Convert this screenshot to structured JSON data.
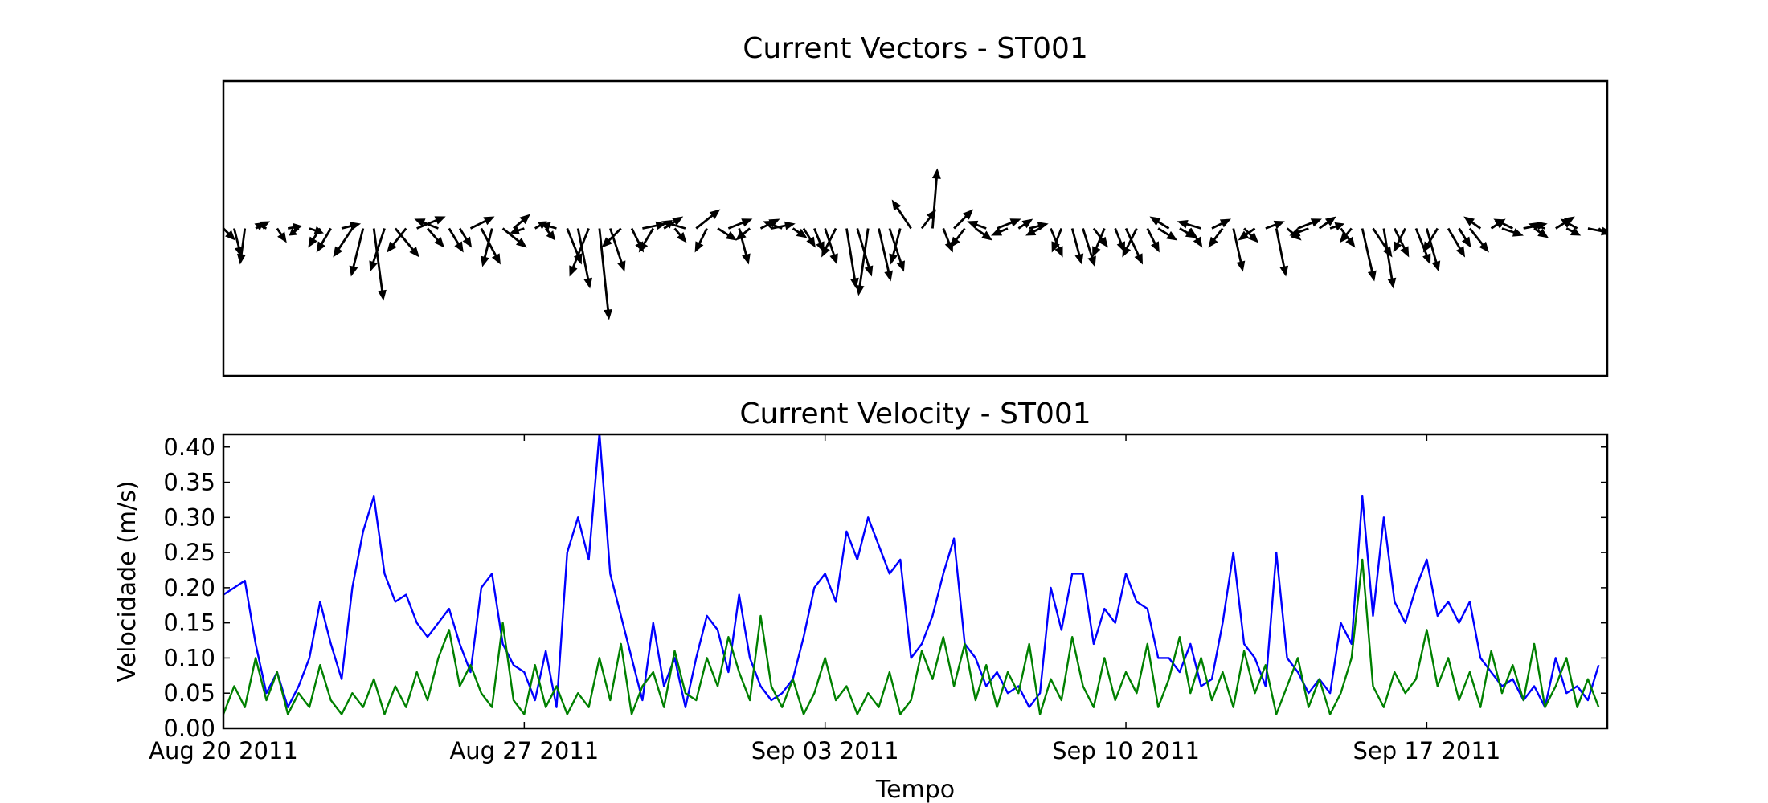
{
  "chart_data": [
    {
      "type": "quiver",
      "title": "Current Vectors - ST001",
      "color": "#000000",
      "xlim": [
        0,
        32.2
      ],
      "x": [
        0,
        0.25,
        0.5,
        0.75,
        1,
        1.25,
        1.5,
        1.75,
        2,
        2.25,
        2.5,
        2.75,
        3,
        3.25,
        3.5,
        3.75,
        4,
        4.25,
        4.5,
        4.75,
        5,
        5.25,
        5.5,
        5.75,
        6,
        6.25,
        6.5,
        6.75,
        7,
        7.25,
        7.5,
        7.75,
        8,
        8.25,
        8.5,
        8.75,
        9,
        9.25,
        9.5,
        9.75,
        10,
        10.25,
        10.5,
        10.75,
        11,
        11.25,
        11.5,
        11.75,
        12,
        12.25,
        12.5,
        12.75,
        13,
        13.25,
        13.5,
        13.75,
        14,
        14.25,
        14.5,
        14.75,
        15,
        15.25,
        15.5,
        15.75,
        16,
        16.25,
        16.5,
        16.75,
        17,
        17.25,
        17.5,
        17.75,
        18,
        18.25,
        18.5,
        18.75,
        19,
        19.25,
        19.5,
        19.75,
        20,
        20.25,
        20.5,
        20.75,
        21,
        21.25,
        21.5,
        21.75,
        22,
        22.25,
        22.5,
        22.75,
        23,
        23.25,
        23.5,
        23.75,
        24,
        24.25,
        24.5,
        24.75,
        25,
        25.25,
        25.5,
        25.75,
        26,
        26.25,
        26.5,
        26.75,
        27,
        27.25,
        27.5,
        27.75,
        28,
        28.25,
        28.5,
        28.75,
        29,
        29.25,
        29.5,
        29.75,
        30,
        30.25,
        30.5,
        30.75,
        31,
        31.25,
        31.5,
        31.75,
        32
      ],
      "u": [
        0.05,
        0.03,
        -0.02,
        0.06,
        -0.05,
        0.04,
        0.06,
        -0.04,
        0.06,
        -0.05,
        -0.06,
        0.08,
        -0.08,
        -0.05,
        0.04,
        -0.06,
        0.1,
        -0.08,
        0.12,
        0.07,
        -0.1,
        0.06,
        0.05,
        0.1,
        0.08,
        -0.04,
        0.1,
        0.07,
        -0.06,
        0.05,
        0.04,
        -0.07,
        0.06,
        0.05,
        -0.08,
        0.04,
        0.06,
        -0.08,
        0.05,
        0.1,
        -0.06,
        0.08,
        0.05,
        -0.1,
        0.1,
        -0.05,
        0.08,
        0.1,
        0.04,
        -0.06,
        0.08,
        0.1,
        -0.08,
        0.06,
        0.05,
        0.04,
        0.05,
        -0.06,
        0.04,
        0.06,
        -0.04,
        0.05,
        0.06,
        -0.04,
        -0.08,
        0.06,
        0.02,
        0.04,
        0.08,
        -0.06,
        0.07,
        -0.08,
        0.1,
        -0.07,
        0.06,
        0.08,
        -0.06,
        0.05,
        -0.04,
        0.04,
        0.05,
        0.06,
        -0.05,
        0.04,
        0.07,
        -0.06,
        0.05,
        0.08,
        -0.08,
        0.07,
        0.05,
        -0.1,
        0.08,
        -0.06,
        0.04,
        0.06,
        -0.07,
        0.08,
        0.04,
        0.06,
        0.1,
        -0.08,
        0.07,
        0.06,
        0.06,
        -0.05,
        0.05,
        0.08,
        0.04,
        0.06,
        -0.05,
        0.06,
        0.05,
        -0.06,
        0.07,
        0.05,
        0.08,
        -0.07,
        0.06,
        0.09,
        -0.08,
        0.1,
        0.06,
        -0.07,
        0.08,
        0.06,
        -0.07,
        0.1,
        0.08
      ],
      "v": [
        -0.05,
        -0.12,
        -0.15,
        0.03,
        0.02,
        -0.06,
        0.01,
        -0.03,
        -0.02,
        -0.08,
        -0.1,
        0.02,
        -0.12,
        -0.2,
        -0.3,
        -0.18,
        -0.12,
        -0.1,
        0.05,
        -0.08,
        0.04,
        -0.1,
        -0.08,
        0.05,
        -0.15,
        -0.16,
        -0.08,
        0.06,
        -0.02,
        0.03,
        -0.05,
        0.02,
        -0.15,
        -0.25,
        -0.2,
        -0.38,
        -0.18,
        -0.08,
        -0.1,
        0.02,
        -0.1,
        0.05,
        -0.06,
        0.03,
        0.08,
        -0.1,
        -0.05,
        0.04,
        -0.15,
        -0.05,
        0.04,
        0.02,
        0.03,
        -0.04,
        -0.08,
        -0.1,
        -0.15,
        -0.12,
        -0.25,
        -0.2,
        -0.28,
        -0.22,
        -0.18,
        -0.15,
        0.12,
        0.08,
        0.25,
        -0.1,
        0.08,
        -0.08,
        -0.05,
        0.03,
        0.04,
        -0.03,
        0.04,
        0.02,
        -0.03,
        -0.12,
        -0.1,
        -0.15,
        -0.16,
        -0.08,
        -0.12,
        -0.1,
        -0.15,
        -0.12,
        -0.1,
        -0.05,
        0.05,
        -0.04,
        -0.08,
        0.03,
        0.04,
        -0.08,
        -0.18,
        -0.06,
        -0.05,
        0.03,
        -0.2,
        -0.05,
        0.04,
        -0.03,
        0.05,
        0.02,
        -0.08,
        -0.06,
        -0.22,
        -0.12,
        -0.25,
        -0.12,
        -0.1,
        -0.15,
        -0.18,
        -0.1,
        -0.12,
        -0.08,
        -0.1,
        0.05,
        0.04,
        -0.03,
        0.04,
        0.02,
        -0.04,
        0.02,
        0.05,
        -0.03,
        0.04,
        -0.02,
        -0.06
      ]
    },
    {
      "type": "line",
      "title": "Current Velocity - ST001",
      "xlabel": "Tempo",
      "ylabel": "Velocidade (m/s)",
      "xlim": [
        0,
        32.2
      ],
      "ylim": [
        0,
        0.418
      ],
      "xticks": [
        {
          "value": 0,
          "label": "Aug 20 2011"
        },
        {
          "value": 7,
          "label": "Aug 27 2011"
        },
        {
          "value": 14,
          "label": "Sep 03 2011"
        },
        {
          "value": 21,
          "label": "Sep 10 2011"
        },
        {
          "value": 28,
          "label": "Sep 17 2011"
        }
      ],
      "yticks": [
        {
          "value": 0,
          "label": "0.00"
        },
        {
          "value": 0.05,
          "label": "0.05"
        },
        {
          "value": 0.1,
          "label": "0.10"
        },
        {
          "value": 0.15,
          "label": "0.15"
        },
        {
          "value": 0.2,
          "label": "0.20"
        },
        {
          "value": 0.25,
          "label": "0.25"
        },
        {
          "value": 0.3,
          "label": "0.30"
        },
        {
          "value": 0.35,
          "label": "0.35"
        },
        {
          "value": 0.4,
          "label": "0.40"
        }
      ],
      "x": [
        0,
        0.25,
        0.5,
        0.75,
        1,
        1.25,
        1.5,
        1.75,
        2,
        2.25,
        2.5,
        2.75,
        3,
        3.25,
        3.5,
        3.75,
        4,
        4.25,
        4.5,
        4.75,
        5,
        5.25,
        5.5,
        5.75,
        6,
        6.25,
        6.5,
        6.75,
        7,
        7.25,
        7.5,
        7.75,
        8,
        8.25,
        8.5,
        8.75,
        9,
        9.25,
        9.5,
        9.75,
        10,
        10.25,
        10.5,
        10.75,
        11,
        11.25,
        11.5,
        11.75,
        12,
        12.25,
        12.5,
        12.75,
        13,
        13.25,
        13.5,
        13.75,
        14,
        14.25,
        14.5,
        14.75,
        15,
        15.25,
        15.5,
        15.75,
        16,
        16.25,
        16.5,
        16.75,
        17,
        17.25,
        17.5,
        17.75,
        18,
        18.25,
        18.5,
        18.75,
        19,
        19.25,
        19.5,
        19.75,
        20,
        20.25,
        20.5,
        20.75,
        21,
        21.25,
        21.5,
        21.75,
        22,
        22.25,
        22.5,
        22.75,
        23,
        23.25,
        23.5,
        23.75,
        24,
        24.25,
        24.5,
        24.75,
        25,
        25.25,
        25.5,
        25.75,
        26,
        26.25,
        26.5,
        26.75,
        27,
        27.25,
        27.5,
        27.75,
        28,
        28.25,
        28.5,
        28.75,
        29,
        29.25,
        29.5,
        29.75,
        30,
        30.25,
        30.5,
        30.75,
        31,
        31.25,
        31.5,
        31.75,
        32
      ],
      "series": [
        {
          "color": "#0000ff",
          "values": [
            0.19,
            0.2,
            0.21,
            0.12,
            0.05,
            0.08,
            0.03,
            0.06,
            0.1,
            0.18,
            0.12,
            0.07,
            0.2,
            0.28,
            0.33,
            0.22,
            0.18,
            0.19,
            0.15,
            0.13,
            0.15,
            0.17,
            0.12,
            0.08,
            0.2,
            0.22,
            0.12,
            0.09,
            0.08,
            0.04,
            0.11,
            0.03,
            0.25,
            0.3,
            0.24,
            0.42,
            0.22,
            0.16,
            0.1,
            0.04,
            0.15,
            0.06,
            0.1,
            0.03,
            0.1,
            0.16,
            0.14,
            0.08,
            0.19,
            0.1,
            0.06,
            0.04,
            0.05,
            0.07,
            0.13,
            0.2,
            0.22,
            0.18,
            0.28,
            0.24,
            0.3,
            0.26,
            0.22,
            0.24,
            0.1,
            0.12,
            0.16,
            0.22,
            0.27,
            0.12,
            0.1,
            0.06,
            0.08,
            0.05,
            0.06,
            0.03,
            0.05,
            0.2,
            0.14,
            0.22,
            0.22,
            0.12,
            0.17,
            0.15,
            0.22,
            0.18,
            0.17,
            0.1,
            0.1,
            0.08,
            0.12,
            0.06,
            0.07,
            0.15,
            0.25,
            0.12,
            0.1,
            0.06,
            0.25,
            0.1,
            0.08,
            0.05,
            0.07,
            0.05,
            0.15,
            0.12,
            0.33,
            0.16,
            0.3,
            0.18,
            0.15,
            0.2,
            0.24,
            0.16,
            0.18,
            0.15,
            0.18,
            0.1,
            0.08,
            0.06,
            0.07,
            0.04,
            0.06,
            0.03,
            0.1,
            0.05,
            0.06,
            0.04,
            0.09
          ]
        },
        {
          "color": "#008000",
          "values": [
            0.02,
            0.06,
            0.03,
            0.1,
            0.04,
            0.08,
            0.02,
            0.05,
            0.03,
            0.09,
            0.04,
            0.02,
            0.05,
            0.03,
            0.07,
            0.02,
            0.06,
            0.03,
            0.08,
            0.04,
            0.1,
            0.14,
            0.06,
            0.09,
            0.05,
            0.03,
            0.15,
            0.04,
            0.02,
            0.09,
            0.03,
            0.06,
            0.02,
            0.05,
            0.03,
            0.1,
            0.04,
            0.12,
            0.02,
            0.06,
            0.08,
            0.03,
            0.11,
            0.05,
            0.04,
            0.1,
            0.06,
            0.13,
            0.08,
            0.04,
            0.16,
            0.06,
            0.03,
            0.07,
            0.02,
            0.05,
            0.1,
            0.04,
            0.06,
            0.02,
            0.05,
            0.03,
            0.08,
            0.02,
            0.04,
            0.11,
            0.07,
            0.13,
            0.06,
            0.12,
            0.04,
            0.09,
            0.03,
            0.08,
            0.05,
            0.12,
            0.02,
            0.07,
            0.04,
            0.13,
            0.06,
            0.03,
            0.1,
            0.04,
            0.08,
            0.05,
            0.12,
            0.03,
            0.07,
            0.13,
            0.05,
            0.1,
            0.04,
            0.08,
            0.03,
            0.11,
            0.05,
            0.09,
            0.02,
            0.06,
            0.1,
            0.03,
            0.07,
            0.02,
            0.05,
            0.1,
            0.24,
            0.06,
            0.03,
            0.08,
            0.05,
            0.07,
            0.14,
            0.06,
            0.1,
            0.04,
            0.08,
            0.03,
            0.11,
            0.05,
            0.09,
            0.04,
            0.12,
            0.03,
            0.06,
            0.1,
            0.03,
            0.07,
            0.03
          ]
        }
      ]
    }
  ]
}
